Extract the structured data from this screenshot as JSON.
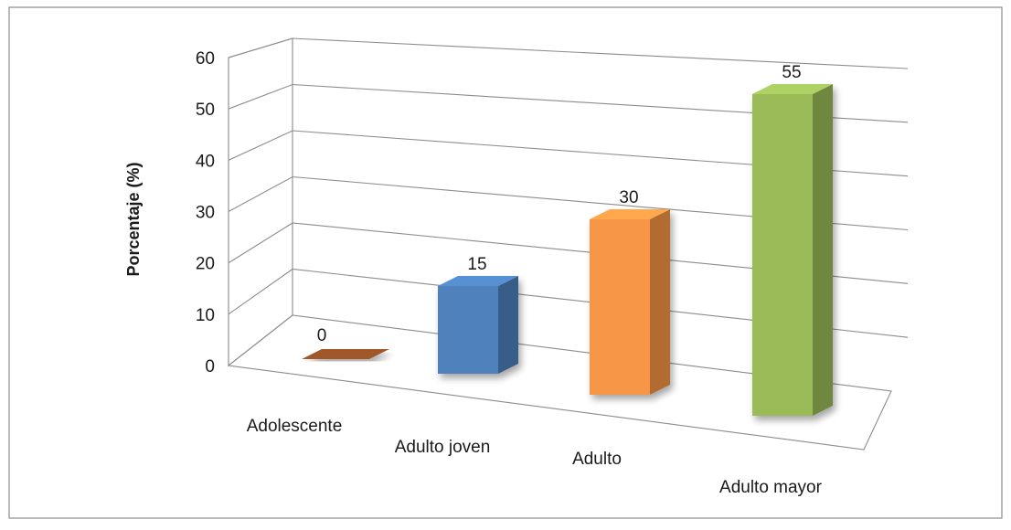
{
  "chart_data": {
    "type": "bar",
    "categories": [
      "Adolescente",
      "Adulto joven",
      "Adulto",
      "Adulto mayor"
    ],
    "values": [
      0,
      15,
      30,
      55
    ],
    "data_labels": [
      "0",
      "15",
      "30",
      "55"
    ],
    "title": "",
    "xlabel": "",
    "ylabel": "Porcentaje (%)",
    "ylim": [
      0,
      60
    ],
    "yticks": [
      "0",
      "10",
      "20",
      "30",
      "40",
      "50",
      "60"
    ],
    "grid": true,
    "style": "3d-column",
    "colors": [
      "#a0582a",
      "#4f81bd",
      "#f79646",
      "#9bbb59"
    ]
  }
}
